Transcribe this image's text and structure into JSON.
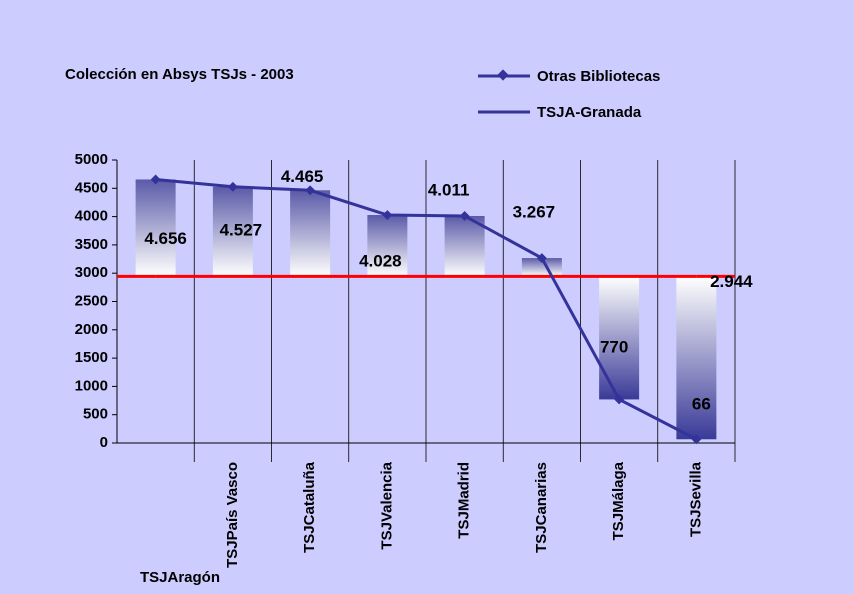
{
  "chart_data": {
    "type": "line",
    "title": "Colección en Absys TSJs - 2003",
    "categories": [
      "TSJAragón",
      "TSJPaís Vasco",
      "TSJCataluña",
      "TSJValencia",
      "TSJMadrid",
      "TSJCanarias",
      "TSJMálaga",
      "TSJSevilla"
    ],
    "series": [
      {
        "name": "Otras Bibliotecas",
        "color": "#333399",
        "values": [
          4656,
          4527,
          4465,
          4028,
          4011,
          3267,
          770,
          66
        ],
        "value_labels": [
          "4.656",
          "4.527",
          "4.465",
          "4.028",
          "4.011",
          "3.267",
          "770",
          "66"
        ]
      },
      {
        "name": "TSJA-Granada",
        "color": "#ff0000",
        "values": [
          2944,
          2944,
          2944,
          2944,
          2944,
          2944,
          2944,
          2944
        ],
        "value_labels": [
          null,
          null,
          null,
          null,
          null,
          null,
          null,
          "2.944"
        ]
      }
    ],
    "up_down_bars": true,
    "ylim": [
      0,
      5000
    ],
    "yticks": [
      0,
      500,
      1000,
      1500,
      2000,
      2500,
      3000,
      3500,
      4000,
      4500,
      5000
    ]
  }
}
